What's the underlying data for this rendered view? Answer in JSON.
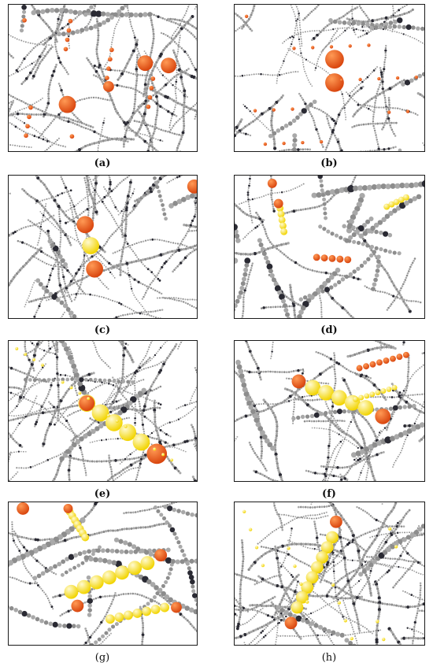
{
  "panels": [
    {
      "id": "a",
      "caption": "(a)"
    },
    {
      "id": "b",
      "caption": "(b)"
    },
    {
      "id": "c",
      "caption": "(c)"
    },
    {
      "id": "d",
      "caption": "(d)"
    },
    {
      "id": "e",
      "caption": "(e)"
    },
    {
      "id": "f",
      "caption": "(f)"
    },
    {
      "id": "g",
      "caption": "(g)"
    },
    {
      "id": "h",
      "caption": "(h)"
    }
  ],
  "colors": {
    "chain_gray": "#8d8d8d",
    "chain_dark": "#2a2a33",
    "bead_orange": "#d9460f",
    "bead_yellow": "#f2d400",
    "border": "#1a1a1a"
  }
}
